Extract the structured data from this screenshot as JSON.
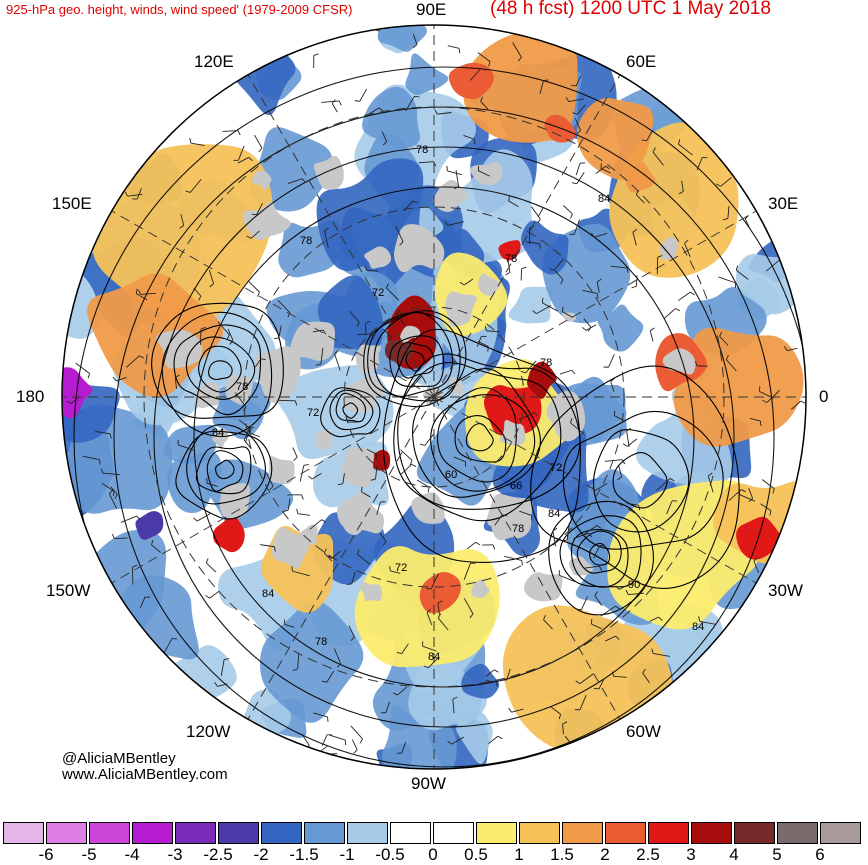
{
  "header": {
    "title": "925-hPa geo. height, winds, wind speed' (1979-2009 CFSR)",
    "forecast": "(48 h fcst) 1200 UTC 1 May 2018"
  },
  "map": {
    "projection": "north-polar-stereographic",
    "longitude_labels": [
      "90E",
      "60E",
      "30E",
      "0",
      "30W",
      "60W",
      "90W",
      "120W",
      "150W",
      "180",
      "150E",
      "120E"
    ],
    "contour_labels": [
      "78",
      "78",
      "78",
      "72",
      "78",
      "84",
      "72",
      "60",
      "66",
      "72",
      "84",
      "78",
      "90",
      "84",
      "84",
      "72",
      "78",
      "84",
      "84",
      "78"
    ]
  },
  "credits": {
    "handle": "@AliciaMBentley",
    "website": "www.AliciaMBentley.com"
  },
  "colorbar": {
    "colors": [
      "#e4b5e8",
      "#dd7ee4",
      "#cc44d8",
      "#b51cd0",
      "#7a2bb8",
      "#4a3aa8",
      "#3366c0",
      "#6699d4",
      "#a6cbe8",
      "#ffffff",
      "#ffffff",
      "#fcec6e",
      "#f5c258",
      "#f09a48",
      "#ec5c34",
      "#e01818",
      "#a80d0d",
      "#762a2a",
      "#7a6a6a",
      "#a89a9a"
    ],
    "ticks": [
      "-6",
      "-5",
      "-4",
      "-3",
      "-2.5",
      "-2",
      "-1.5",
      "-1",
      "-0.5",
      "0",
      "0.5",
      "1",
      "1.5",
      "2",
      "2.5",
      "3",
      "4",
      "5",
      "6"
    ]
  }
}
